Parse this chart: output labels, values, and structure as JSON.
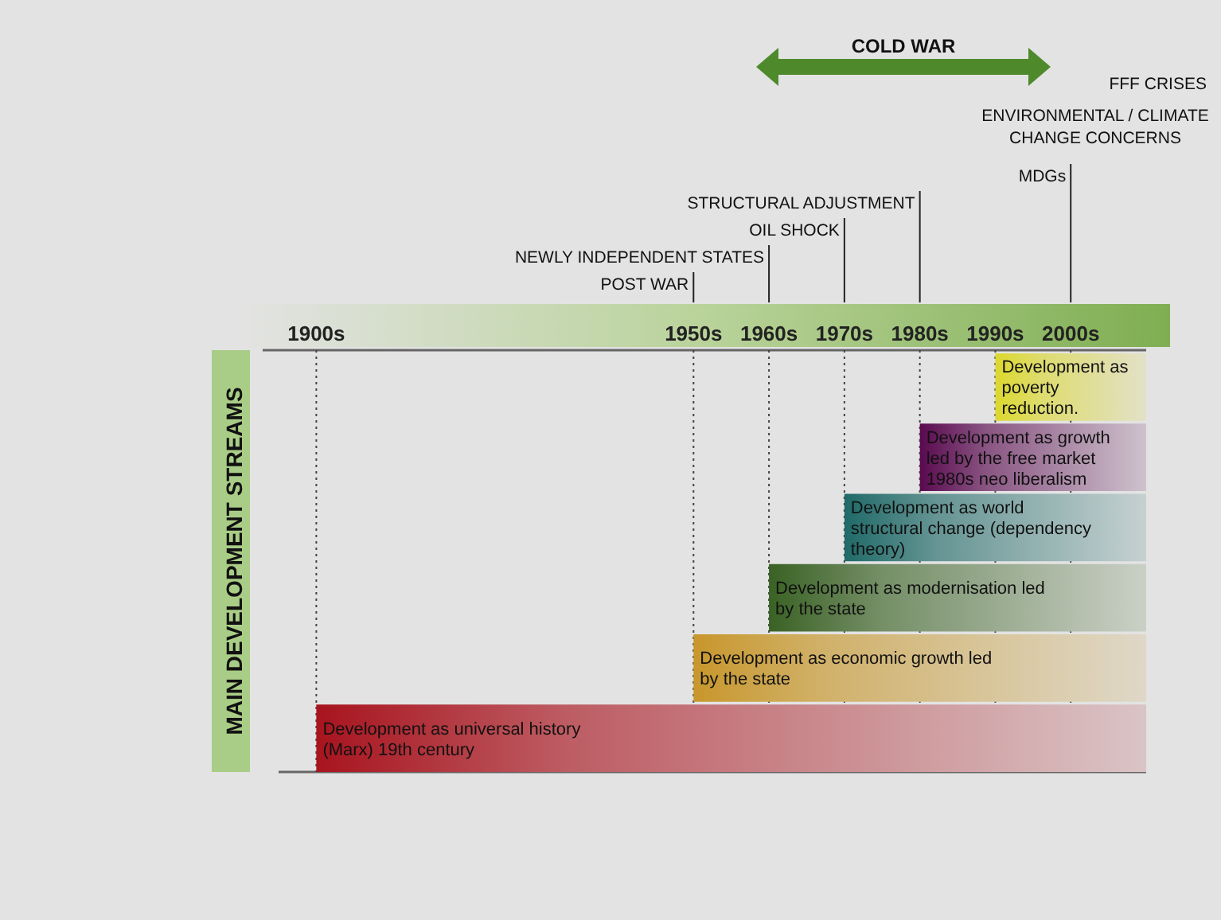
{
  "chart_data": {
    "type": "bar",
    "orientation": "horizontal",
    "ylabel": "MAIN DEVELOPMENT STREAMS",
    "categories": [
      "Development as poverty reduction.",
      "Development as growth led by the free market  1980s neo liberalism",
      "Development as world structural change (dependency theory)",
      "Development as modernisation led by the state",
      "Development as economic growth led by the state",
      "Development as universal history (Marx) 19th century"
    ],
    "base": [
      1990,
      1980,
      1970,
      1960,
      1950,
      1900
    ],
    "values": [
      20,
      30,
      40,
      50,
      60,
      110
    ],
    "colors": [
      "#dcd82e",
      "#5a0a50",
      "#1f6a68",
      "#3a6224",
      "#c8972c",
      "#a8141e"
    ],
    "xlim": [
      1895,
      2010
    ],
    "xticks": [
      {
        "value": 1900,
        "label": "1900s"
      },
      {
        "value": 1950,
        "label": "1950s"
      },
      {
        "value": 1960,
        "label": "1960s"
      },
      {
        "value": 1970,
        "label": "1970s"
      },
      {
        "value": 1980,
        "label": "1980s"
      },
      {
        "value": 1990,
        "label": "1990s"
      },
      {
        "value": 2000,
        "label": "2000s"
      }
    ],
    "grid": "x",
    "ref_lines": [
      {
        "axis": "x",
        "value": 1950,
        "label": "POST WAR"
      },
      {
        "axis": "x",
        "value": 1960,
        "label": "NEWLY INDEPENDENT STATES"
      },
      {
        "axis": "x",
        "value": 1970,
        "label": "OIL SHOCK"
      },
      {
        "axis": "x",
        "value": 1980,
        "label": "STRUCTURAL ADJUSTMENT"
      },
      {
        "axis": "x",
        "value": 2000,
        "label": "MDGs"
      }
    ],
    "annotations": [
      "COLD WAR",
      "FFF CRISES",
      "ENVIRONMENTAL / CLIMATE CHANGE CONCERNS"
    ]
  }
}
